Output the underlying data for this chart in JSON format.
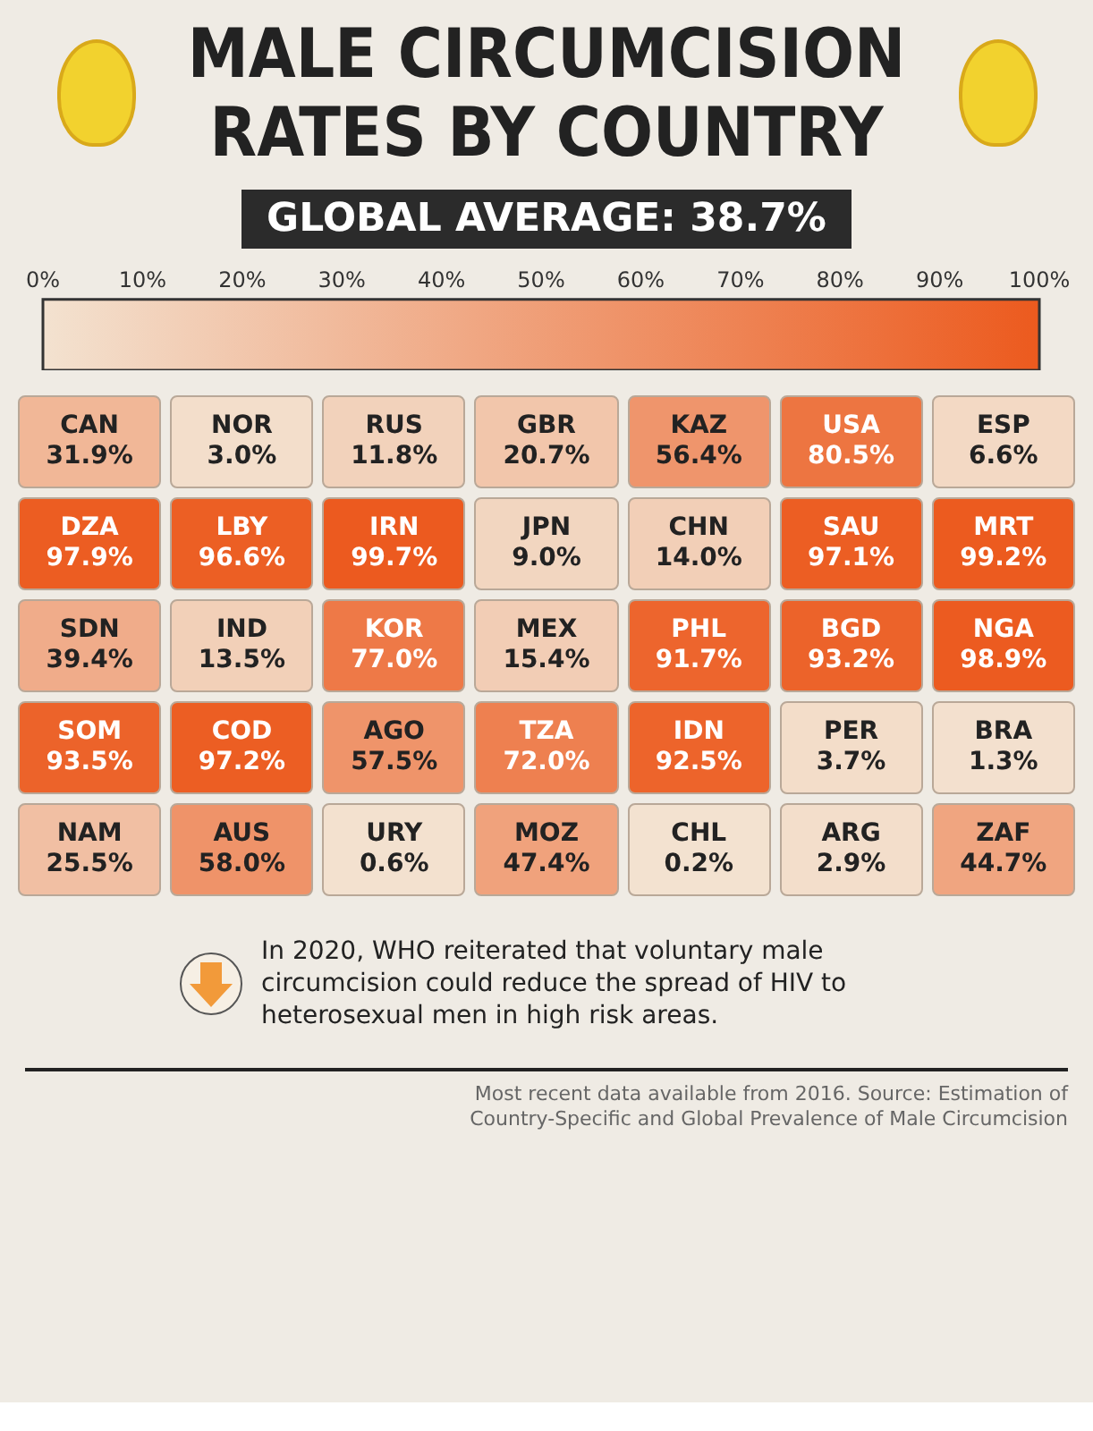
{
  "chart_data": {
    "type": "heatmap",
    "title": "MALE CIRCUMCISION RATES BY COUNTRY",
    "subtitle": "GLOBAL AVERAGE: 38.7%",
    "categories": [
      null,
      null,
      null,
      null,
      null,
      null,
      null
    ],
    "y_categories": [
      null,
      null,
      null,
      null,
      null
    ],
    "cells": [
      [
        31.9,
        3.0,
        11.8,
        20.7,
        56.4,
        80.5,
        6.6
      ],
      [
        97.9,
        96.6,
        99.7,
        9.0,
        14.0,
        97.1,
        99.2
      ],
      [
        39.4,
        13.5,
        77.0,
        15.4,
        91.7,
        93.2,
        98.9
      ],
      [
        93.5,
        97.2,
        57.5,
        72.0,
        92.5,
        3.7,
        1.3
      ],
      [
        25.5,
        58.0,
        0.6,
        47.4,
        0.2,
        2.9,
        44.7
      ]
    ],
    "cell_labels": [
      [
        "CAN\n31.9%",
        "NOR\n3.0%",
        "RUS\n11.8%",
        "GBR\n20.7%",
        "KAZ\n56.4%",
        "USA\n80.5%",
        "ESP\n6.6%"
      ],
      [
        "DZA\n97.9%",
        "LBY\n96.6%",
        "IRN\n99.7%",
        "JPN\n9.0%",
        "CHN\n14.0%",
        "SAU\n97.1%",
        "MRT\n99.2%"
      ],
      [
        "SDN\n39.4%",
        "IND\n13.5%",
        "KOR\n77.0%",
        "MEX\n15.4%",
        "PHL\n91.7%",
        "BGD\n93.2%",
        "NGA\n98.9%"
      ],
      [
        "SOM\n93.5%",
        "COD\n97.2%",
        "AGO\n57.5%",
        "TZA\n72.0%",
        "IDN\n92.5%",
        "PER\n3.7%",
        "BRA\n1.3%"
      ],
      [
        "NAM\n25.5%",
        "AUS\n58.0%",
        "URY\n0.6%",
        "MOZ\n47.4%",
        "CHL\n0.2%",
        "ARG\n2.9%",
        "ZAF\n44.7%"
      ]
    ],
    "clim": [
      0,
      100
    ],
    "cticks": [
      {
        "value": 0,
        "label": "0%"
      },
      {
        "value": 10,
        "label": "10%"
      },
      {
        "value": 20,
        "label": "20%"
      },
      {
        "value": 30,
        "label": "30%"
      },
      {
        "value": 40,
        "label": "40%"
      },
      {
        "value": 50,
        "label": "50%"
      },
      {
        "value": 60,
        "label": "60%"
      },
      {
        "value": 70,
        "label": "70%"
      },
      {
        "value": 80,
        "label": "80%"
      },
      {
        "value": 90,
        "label": "90%"
      },
      {
        "value": 100,
        "label": "100%"
      }
    ],
    "annotations": [
      "In 2020, WHO reiterated that voluntary male circumcision could reduce the spread of HIV to heterosexual men in high risk areas.",
      "Most recent data available from 2016. Source: Estimation of Country-Specific and Global Prevalence of Male Circumcision"
    ]
  }
}
